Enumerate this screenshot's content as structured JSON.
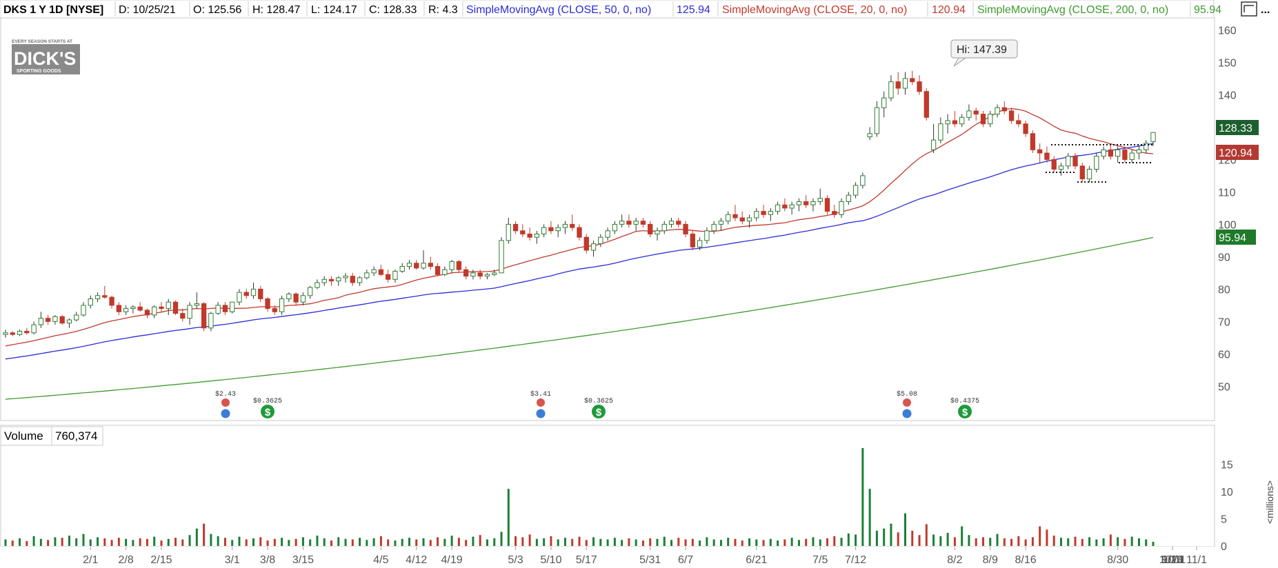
{
  "header": {
    "symbol": "DKS 1 Y 1D [NYSE]",
    "date": "D: 10/25/21",
    "open": "O: 125.56",
    "high": "H: 128.47",
    "low": "L: 124.17",
    "close": "C: 128.33",
    "range": "R: 4.3",
    "sma50_label": "SimpleMovingAvg (CLOSE, 50, 0, no)",
    "sma50_value": "125.94",
    "sma20_label": "SimpleMovingAvg (CLOSE, 20, 0, no)",
    "sma20_value": "120.94",
    "sma200_label": "SimpleMovingAvg (CLOSE, 200, 0, no)",
    "sma200_value": "95.94",
    "more": "..."
  },
  "logo": {
    "top": "EVERY SEASON STARTS AT",
    "main": "DICK'S",
    "sub": "SPORTING GOODS"
  },
  "hi_callout": "Hi: 147.39",
  "price_tags": {
    "last": "128.33",
    "sma20": "120.94",
    "sma200": "95.94"
  },
  "volume_header": {
    "label": "Volume",
    "value": "760,374"
  },
  "volume_unit": "<millions>",
  "colors": {
    "up": "#1a7f37",
    "down": "#c0392b",
    "sma50": "#2b2bd6",
    "sma20": "#c0392b",
    "sma200": "#3e9a2e",
    "last_tag": "#1d5e2e",
    "sma20_tag": "#b23a33",
    "sma200_tag": "#1f7a2a"
  },
  "events": [
    {
      "kind": "earnings",
      "label": "$2.43",
      "date": "3/2"
    },
    {
      "kind": "dividend",
      "label": "$0.3625",
      "date": "3/10"
    },
    {
      "kind": "earnings",
      "label": "$3.41",
      "date": "5/19"
    },
    {
      "kind": "dividend",
      "label": "$0.3625",
      "date": "6/3"
    },
    {
      "kind": "earnings",
      "label": "$5.08",
      "date": "8/25"
    },
    {
      "kind": "dividend",
      "label": "$0.4375",
      "date": "9/9"
    }
  ],
  "chart_data": [
    {
      "type": "candlestick",
      "title": "DKS 1 Y 1D [NYSE]",
      "y_ticks": [
        50,
        60,
        70,
        80,
        90,
        100,
        110,
        120,
        130,
        140,
        150,
        160
      ],
      "ylim": [
        42,
        162
      ],
      "x_ticks": [
        "2/1",
        "2/8",
        "2/15",
        "3/1",
        "3/8",
        "3/15",
        "4/5",
        "4/12",
        "4/19",
        "5/3",
        "5/10",
        "5/17",
        "5/31",
        "6/7",
        "6/21",
        "7/5",
        "7/12",
        "8/2",
        "8/9",
        "8/16",
        "8/30",
        "9/13",
        "9/20",
        "10/4",
        "10/11",
        "11/1"
      ],
      "series": [
        {
          "name": "SimpleMovingAvg (CLOSE, 50, 0, no)",
          "last": 125.94
        },
        {
          "name": "SimpleMovingAvg (CLOSE, 20, 0, no)",
          "last": 120.94
        },
        {
          "name": "SimpleMovingAvg (CLOSE, 200, 0, no)",
          "last": 95.94
        }
      ],
      "candles": [
        [
          66,
          67.5,
          65,
          66.5
        ],
        [
          66.5,
          67,
          65.5,
          66
        ],
        [
          66,
          67.5,
          65.5,
          67
        ],
        [
          67,
          68,
          66,
          66.5
        ],
        [
          66.5,
          70,
          66,
          69
        ],
        [
          69,
          73,
          68,
          71
        ],
        [
          71,
          72,
          69,
          70
        ],
        [
          70,
          72,
          69,
          71.5
        ],
        [
          71.5,
          72,
          69,
          69.5
        ],
        [
          69.5,
          71,
          68,
          70.5
        ],
        [
          70.5,
          73,
          70,
          72
        ],
        [
          72,
          76,
          71.5,
          75
        ],
        [
          75,
          78,
          74,
          77
        ],
        [
          77,
          79,
          76,
          78
        ],
        [
          78,
          81,
          77,
          77.5
        ],
        [
          77.5,
          78,
          74,
          75
        ],
        [
          75,
          76,
          72,
          73
        ],
        [
          73,
          75,
          72,
          74
        ],
        [
          74,
          75,
          72.5,
          74.5
        ],
        [
          74.5,
          76,
          73,
          73.5
        ],
        [
          73.5,
          74,
          71,
          72
        ],
        [
          72,
          75,
          71,
          74.5
        ],
        [
          74.5,
          76,
          73,
          74
        ],
        [
          74,
          77,
          72,
          76
        ],
        [
          76,
          76.5,
          72,
          72.5
        ],
        [
          72.5,
          74,
          70,
          71
        ],
        [
          71,
          76,
          69,
          75
        ],
        [
          75,
          79,
          74,
          75.5
        ],
        [
          75.5,
          76,
          67,
          68
        ],
        [
          68,
          73,
          67,
          72.5
        ],
        [
          72.5,
          76,
          72,
          75
        ],
        [
          75,
          76,
          72,
          73
        ],
        [
          73,
          76,
          72.5,
          76
        ],
        [
          76,
          80,
          75,
          79
        ],
        [
          79,
          80,
          77,
          78
        ],
        [
          78,
          82,
          77,
          80
        ],
        [
          80,
          81,
          76,
          77
        ],
        [
          77,
          77.5,
          73,
          74
        ],
        [
          74,
          75,
          72,
          73
        ],
        [
          73,
          78,
          72,
          77
        ],
        [
          77,
          79,
          76,
          78.5
        ],
        [
          78.5,
          79,
          75,
          76
        ],
        [
          76,
          79,
          75,
          78
        ],
        [
          78,
          81,
          77,
          80.5
        ],
        [
          80.5,
          83,
          80,
          82
        ],
        [
          82,
          84,
          81,
          83
        ],
        [
          83,
          84,
          81,
          82.5
        ],
        [
          82.5,
          84,
          81,
          83.5
        ],
        [
          83.5,
          85,
          82,
          84
        ],
        [
          84,
          85,
          81,
          82
        ],
        [
          82,
          84,
          81,
          83.5
        ],
        [
          83.5,
          86,
          83,
          85
        ],
        [
          85,
          87,
          84,
          86
        ],
        [
          86,
          87.5,
          84,
          84.5
        ],
        [
          84.5,
          86,
          82,
          83
        ],
        [
          83,
          86,
          82,
          85.5
        ],
        [
          85.5,
          88,
          85,
          87
        ],
        [
          87,
          89,
          86,
          88
        ],
        [
          88,
          89,
          86,
          86.5
        ],
        [
          86.5,
          92,
          86,
          88
        ],
        [
          88,
          90,
          86,
          87
        ],
        [
          87,
          88,
          84,
          84.5
        ],
        [
          84.5,
          87,
          84,
          86
        ],
        [
          86,
          89,
          85,
          88.5
        ],
        [
          88.5,
          89,
          85,
          86
        ],
        [
          86,
          87,
          83,
          84
        ],
        [
          84,
          86,
          83,
          85
        ],
        [
          85,
          86,
          83,
          84
        ],
        [
          84,
          85,
          83,
          84.5
        ],
        [
          84.5,
          86,
          84,
          85
        ],
        [
          85,
          96,
          85,
          95
        ],
        [
          95,
          102,
          94,
          100
        ],
        [
          100,
          101,
          97,
          98
        ],
        [
          98,
          100,
          96,
          97
        ],
        [
          97,
          99,
          95,
          96
        ],
        [
          96,
          98,
          94,
          97
        ],
        [
          97,
          100,
          96,
          99
        ],
        [
          99,
          101,
          97,
          98
        ],
        [
          98,
          100,
          96,
          99
        ],
        [
          99,
          101,
          97,
          100
        ],
        [
          100,
          103,
          98,
          99
        ],
        [
          99,
          100,
          95,
          96
        ],
        [
          96,
          97,
          91,
          92
        ],
        [
          92,
          95,
          90,
          94
        ],
        [
          94,
          97,
          93,
          96
        ],
        [
          96,
          99,
          95,
          98
        ],
        [
          98,
          101,
          97,
          100
        ],
        [
          100,
          103,
          99,
          101
        ],
        [
          101,
          103,
          99,
          100
        ],
        [
          100,
          102,
          98,
          101
        ],
        [
          101,
          102,
          99,
          100
        ],
        [
          100,
          101,
          96,
          97
        ],
        [
          97,
          99,
          95,
          98
        ],
        [
          98,
          101,
          97,
          100
        ],
        [
          100,
          102,
          99,
          101
        ],
        [
          101,
          102,
          99,
          100
        ],
        [
          100,
          101,
          96,
          97
        ],
        [
          97,
          98,
          92,
          93
        ],
        [
          93,
          96,
          92,
          95
        ],
        [
          95,
          99,
          94,
          98
        ],
        [
          98,
          101,
          97,
          100
        ],
        [
          100,
          102,
          98,
          101
        ],
        [
          101,
          104,
          100,
          103
        ],
        [
          103,
          106,
          101,
          102
        ],
        [
          102,
          104,
          100,
          101
        ],
        [
          101,
          103,
          99,
          102
        ],
        [
          102,
          105,
          101,
          104
        ],
        [
          104,
          106,
          102,
          103
        ],
        [
          103,
          105,
          101,
          104
        ],
        [
          104,
          107,
          103,
          106
        ],
        [
          106,
          108,
          104,
          105
        ],
        [
          105,
          107,
          103,
          106
        ],
        [
          106,
          108,
          104,
          107
        ],
        [
          107,
          109,
          105,
          106
        ],
        [
          106,
          108,
          104,
          107
        ],
        [
          107,
          111,
          106,
          108
        ],
        [
          108,
          109,
          103,
          104
        ],
        [
          104,
          106,
          102,
          103
        ],
        [
          103,
          108,
          102,
          107
        ],
        [
          107,
          110,
          106,
          109
        ],
        [
          109,
          113,
          108,
          112
        ],
        [
          112,
          116,
          111,
          115
        ],
        [
          127,
          130,
          126,
          128
        ],
        [
          128,
          138,
          127,
          136
        ],
        [
          136,
          141,
          133,
          139
        ],
        [
          139,
          146,
          138,
          144
        ],
        [
          144,
          147,
          140,
          142
        ],
        [
          142,
          147,
          140,
          145
        ],
        [
          145,
          147.4,
          143,
          144
        ],
        [
          144,
          146,
          140,
          141
        ],
        [
          141,
          142,
          132,
          133
        ],
        [
          123,
          131,
          122,
          126
        ],
        [
          126,
          133,
          125,
          131
        ],
        [
          131,
          134,
          128,
          132
        ],
        [
          132,
          135,
          130,
          131
        ],
        [
          131,
          134,
          130,
          133
        ],
        [
          133,
          137,
          132,
          135
        ],
        [
          135,
          136,
          132,
          134
        ],
        [
          134,
          135,
          130,
          131
        ],
        [
          131,
          135,
          130,
          134
        ],
        [
          134,
          137,
          133,
          136
        ],
        [
          136,
          138,
          134,
          135
        ],
        [
          135,
          136,
          131,
          132
        ],
        [
          132,
          134,
          130,
          131
        ],
        [
          131,
          132,
          127,
          128
        ],
        [
          128,
          129,
          122,
          123
        ],
        [
          123,
          125,
          119,
          122
        ],
        [
          122,
          124,
          119,
          120
        ],
        [
          120,
          121,
          116,
          117
        ],
        [
          117,
          119,
          115,
          118
        ],
        [
          118,
          122,
          117,
          121
        ],
        [
          121,
          122,
          117,
          118
        ],
        [
          118,
          119,
          113,
          114
        ],
        [
          114,
          118,
          113,
          117
        ],
        [
          117,
          122,
          116,
          121
        ],
        [
          121,
          124,
          120,
          123
        ],
        [
          123,
          125,
          120,
          121
        ],
        [
          121,
          124,
          119,
          123
        ],
        [
          123,
          124,
          119,
          120
        ],
        [
          120,
          123,
          119,
          122
        ],
        [
          122,
          124,
          120,
          123
        ],
        [
          123,
          126,
          122,
          125
        ],
        [
          125.56,
          128.47,
          124.17,
          128.33
        ]
      ],
      "volume": {
        "ylabel": "<millions>",
        "y_ticks": [
          0,
          5,
          10,
          15
        ],
        "ylim": [
          0,
          18
        ],
        "last": 760374,
        "values": [
          1.2,
          1.0,
          1.4,
          0.9,
          1.8,
          1.3,
          1.1,
          1.6,
          1.5,
          1.9,
          1.4,
          2.2,
          1.2,
          1.6,
          1.4,
          1.1,
          1.5,
          1.3,
          1.1,
          1.4,
          1.3,
          1.7,
          1.0,
          1.3,
          1.5,
          1.2,
          2.0,
          3.2,
          4.1,
          2.2,
          1.8,
          1.5,
          1.1,
          1.7,
          1.2,
          1.4,
          1.6,
          1.0,
          1.3,
          1.5,
          1.1,
          1.3,
          1.6,
          1.2,
          1.9,
          1.4,
          1.0,
          1.6,
          1.3,
          1.2,
          1.5,
          1.1,
          1.4,
          1.8,
          1.2,
          1.0,
          1.3,
          1.5,
          1.2,
          1.4,
          1.1,
          1.6,
          1.3,
          1.9,
          1.5,
          1.1,
          1.7,
          2.0,
          1.2,
          1.4,
          2.6,
          10.5,
          1.8,
          1.6,
          2.1,
          1.3,
          1.4,
          1.8,
          1.2,
          1.5,
          1.3,
          1.7,
          1.1,
          1.6,
          1.3,
          1.2,
          1.5,
          1.1,
          1.4,
          1.2,
          1.0,
          1.4,
          1.3,
          1.7,
          1.1,
          1.5,
          1.2,
          1.3,
          1.0,
          1.6,
          1.2,
          1.1,
          1.5,
          1.3,
          1.0,
          1.4,
          1.2,
          1.1,
          1.3,
          1.0,
          1.2,
          1.5,
          1.1,
          1.3,
          1.6,
          1.2,
          1.4,
          1.8,
          1.5,
          2.3,
          2.1,
          18.0,
          10.5,
          2.8,
          3.2,
          4.1,
          2.5,
          6.0,
          2.8,
          2.0,
          4.0,
          2.1,
          1.8,
          2.4,
          1.6,
          3.6,
          2.0,
          1.4,
          1.6,
          1.5,
          2.2,
          1.4,
          1.3,
          1.8,
          1.2,
          1.6,
          3.6,
          3.0,
          1.9,
          1.5,
          1.4,
          1.7,
          1.3,
          1.6,
          1.2,
          1.4,
          2.1,
          1.6,
          1.3,
          1.7,
          1.4,
          1.2,
          0.76
        ]
      }
    }
  ]
}
